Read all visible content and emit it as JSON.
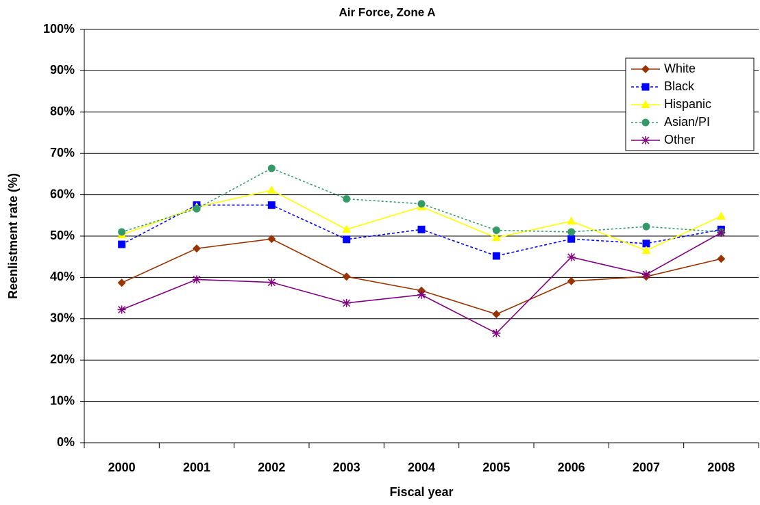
{
  "chart_data": {
    "type": "line",
    "title": "Air Force, Zone A",
    "xlabel": "Fiscal year",
    "ylabel": "Reenlistment rate (%)",
    "categories": [
      "2000",
      "2001",
      "2002",
      "2003",
      "2004",
      "2005",
      "2006",
      "2007",
      "2008"
    ],
    "ylim": [
      0,
      100
    ],
    "yticks": [
      {
        "value": 0,
        "label": "0%"
      },
      {
        "value": 10,
        "label": "10%"
      },
      {
        "value": 20,
        "label": "20%"
      },
      {
        "value": 30,
        "label": "30%"
      },
      {
        "value": 40,
        "label": "40%"
      },
      {
        "value": 50,
        "label": "50%"
      },
      {
        "value": 60,
        "label": "60%"
      },
      {
        "value": 70,
        "label": "70%"
      },
      {
        "value": 80,
        "label": "80%"
      },
      {
        "value": 90,
        "label": "90%"
      },
      {
        "value": 100,
        "label": "100%"
      }
    ],
    "grid": true,
    "legend": "upper right",
    "series": [
      {
        "name": "White",
        "color": "#993300",
        "marker": "diamond",
        "dash": "solid",
        "values": [
          38.7,
          47.0,
          49.3,
          40.2,
          36.8,
          31.1,
          39.1,
          40.2,
          44.5
        ]
      },
      {
        "name": "Black",
        "color": "#0000ff",
        "marker": "square",
        "dash": "dashed",
        "values": [
          48.0,
          57.5,
          57.5,
          49.2,
          51.6,
          45.2,
          49.3,
          48.2,
          51.6
        ]
      },
      {
        "name": "Hispanic",
        "color": "#ffff00",
        "marker": "triangle",
        "dash": "solid",
        "values": [
          50.3,
          57.0,
          61.1,
          51.6,
          57.1,
          49.6,
          53.6,
          46.5,
          54.8
        ]
      },
      {
        "name": "Asian/PI",
        "color": "#339966",
        "marker": "circle",
        "dash": "dotted",
        "values": [
          51.0,
          56.6,
          66.4,
          59.0,
          57.8,
          51.4,
          51.0,
          52.3,
          51.0
        ]
      },
      {
        "name": "Other",
        "color": "#800080",
        "marker": "asterisk",
        "dash": "solid",
        "values": [
          32.2,
          39.5,
          38.8,
          33.8,
          35.8,
          26.5,
          44.9,
          40.7,
          50.8
        ]
      }
    ]
  }
}
